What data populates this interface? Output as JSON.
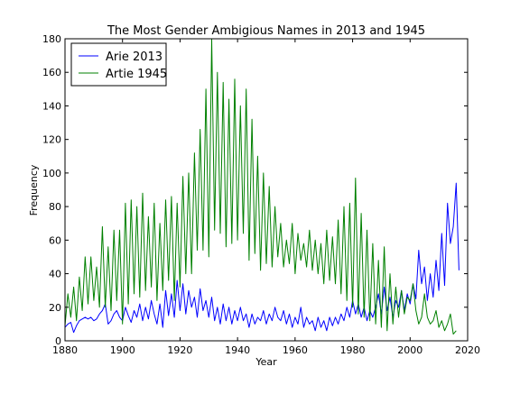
{
  "chart_data": {
    "type": "line",
    "title": "The Most Gender Ambigious Names in 2013 and 1945",
    "xlabel": "Year",
    "ylabel": "Frequency",
    "xlim": [
      1880,
      2020
    ],
    "ylim": [
      0,
      180
    ],
    "xticks": [
      1880,
      1900,
      1920,
      1940,
      1960,
      1980,
      2000,
      2020
    ],
    "yticks": [
      0,
      20,
      40,
      60,
      80,
      100,
      120,
      140,
      160,
      180
    ],
    "grid": false,
    "legend_position": "top-left",
    "series": [
      {
        "name": "Arie 2013",
        "color": "#0000ff",
        "points": [
          [
            1880,
            8
          ],
          [
            1881,
            10
          ],
          [
            1882,
            11
          ],
          [
            1883,
            5
          ],
          [
            1884,
            9
          ],
          [
            1885,
            12
          ],
          [
            1886,
            13
          ],
          [
            1887,
            14
          ],
          [
            1888,
            13
          ],
          [
            1889,
            14
          ],
          [
            1890,
            12
          ],
          [
            1891,
            13
          ],
          [
            1892,
            16
          ],
          [
            1893,
            18
          ],
          [
            1894,
            22
          ],
          [
            1895,
            10
          ],
          [
            1896,
            12
          ],
          [
            1897,
            16
          ],
          [
            1898,
            18
          ],
          [
            1899,
            14
          ],
          [
            1900,
            12
          ],
          [
            1901,
            20
          ],
          [
            1902,
            15
          ],
          [
            1903,
            11
          ],
          [
            1904,
            18
          ],
          [
            1905,
            14
          ],
          [
            1906,
            22
          ],
          [
            1907,
            12
          ],
          [
            1908,
            20
          ],
          [
            1909,
            13
          ],
          [
            1910,
            24
          ],
          [
            1911,
            16
          ],
          [
            1912,
            10
          ],
          [
            1913,
            22
          ],
          [
            1914,
            8
          ],
          [
            1915,
            30
          ],
          [
            1916,
            15
          ],
          [
            1917,
            28
          ],
          [
            1918,
            14
          ],
          [
            1919,
            36
          ],
          [
            1920,
            18
          ],
          [
            1921,
            34
          ],
          [
            1922,
            16
          ],
          [
            1923,
            30
          ],
          [
            1924,
            20
          ],
          [
            1925,
            26
          ],
          [
            1926,
            14
          ],
          [
            1927,
            31
          ],
          [
            1928,
            18
          ],
          [
            1929,
            24
          ],
          [
            1930,
            14
          ],
          [
            1931,
            26
          ],
          [
            1932,
            12
          ],
          [
            1933,
            20
          ],
          [
            1934,
            10
          ],
          [
            1935,
            22
          ],
          [
            1936,
            12
          ],
          [
            1937,
            20
          ],
          [
            1938,
            10
          ],
          [
            1939,
            18
          ],
          [
            1940,
            12
          ],
          [
            1941,
            20
          ],
          [
            1942,
            12
          ],
          [
            1943,
            16
          ],
          [
            1944,
            8
          ],
          [
            1945,
            16
          ],
          [
            1946,
            10
          ],
          [
            1947,
            14
          ],
          [
            1948,
            12
          ],
          [
            1949,
            18
          ],
          [
            1950,
            10
          ],
          [
            1951,
            16
          ],
          [
            1952,
            12
          ],
          [
            1953,
            20
          ],
          [
            1954,
            14
          ],
          [
            1955,
            12
          ],
          [
            1956,
            18
          ],
          [
            1957,
            10
          ],
          [
            1958,
            16
          ],
          [
            1959,
            8
          ],
          [
            1960,
            14
          ],
          [
            1961,
            10
          ],
          [
            1962,
            20
          ],
          [
            1963,
            8
          ],
          [
            1964,
            14
          ],
          [
            1965,
            10
          ],
          [
            1966,
            12
          ],
          [
            1967,
            6
          ],
          [
            1968,
            14
          ],
          [
            1969,
            8
          ],
          [
            1970,
            12
          ],
          [
            1971,
            6
          ],
          [
            1972,
            14
          ],
          [
            1973,
            9
          ],
          [
            1974,
            14
          ],
          [
            1975,
            10
          ],
          [
            1976,
            16
          ],
          [
            1977,
            12
          ],
          [
            1978,
            20
          ],
          [
            1979,
            14
          ],
          [
            1980,
            24
          ],
          [
            1981,
            16
          ],
          [
            1982,
            22
          ],
          [
            1983,
            14
          ],
          [
            1984,
            20
          ],
          [
            1985,
            12
          ],
          [
            1986,
            18
          ],
          [
            1987,
            14
          ],
          [
            1988,
            20
          ],
          [
            1989,
            28
          ],
          [
            1990,
            16
          ],
          [
            1991,
            32
          ],
          [
            1992,
            18
          ],
          [
            1993,
            26
          ],
          [
            1994,
            14
          ],
          [
            1995,
            24
          ],
          [
            1996,
            20
          ],
          [
            1997,
            30
          ],
          [
            1998,
            18
          ],
          [
            1999,
            28
          ],
          [
            2000,
            22
          ],
          [
            2001,
            34
          ],
          [
            2002,
            25
          ],
          [
            2003,
            54
          ],
          [
            2004,
            34
          ],
          [
            2005,
            44
          ],
          [
            2006,
            24
          ],
          [
            2007,
            40
          ],
          [
            2008,
            26
          ],
          [
            2009,
            48
          ],
          [
            2010,
            30
          ],
          [
            2011,
            64
          ],
          [
            2012,
            33
          ],
          [
            2013,
            82
          ],
          [
            2014,
            58
          ],
          [
            2015,
            68
          ],
          [
            2016,
            94
          ],
          [
            2017,
            42
          ]
        ]
      },
      {
        "name": "Artie 1945",
        "color": "#008000",
        "points": [
          [
            1880,
            9
          ],
          [
            1881,
            28
          ],
          [
            1882,
            14
          ],
          [
            1883,
            32
          ],
          [
            1884,
            12
          ],
          [
            1885,
            38
          ],
          [
            1886,
            18
          ],
          [
            1887,
            50
          ],
          [
            1888,
            22
          ],
          [
            1889,
            50
          ],
          [
            1890,
            24
          ],
          [
            1891,
            44
          ],
          [
            1892,
            20
          ],
          [
            1893,
            68
          ],
          [
            1894,
            20
          ],
          [
            1895,
            56
          ],
          [
            1896,
            18
          ],
          [
            1897,
            66
          ],
          [
            1898,
            24
          ],
          [
            1899,
            66
          ],
          [
            1900,
            10
          ],
          [
            1901,
            82
          ],
          [
            1902,
            22
          ],
          [
            1903,
            84
          ],
          [
            1904,
            28
          ],
          [
            1905,
            80
          ],
          [
            1906,
            26
          ],
          [
            1907,
            88
          ],
          [
            1908,
            30
          ],
          [
            1909,
            74
          ],
          [
            1910,
            32
          ],
          [
            1911,
            82
          ],
          [
            1912,
            24
          ],
          [
            1913,
            70
          ],
          [
            1914,
            30
          ],
          [
            1915,
            84
          ],
          [
            1916,
            36
          ],
          [
            1917,
            86
          ],
          [
            1918,
            24
          ],
          [
            1919,
            82
          ],
          [
            1920,
            32
          ],
          [
            1921,
            98
          ],
          [
            1922,
            40
          ],
          [
            1923,
            100
          ],
          [
            1924,
            40
          ],
          [
            1925,
            112
          ],
          [
            1926,
            54
          ],
          [
            1927,
            126
          ],
          [
            1928,
            54
          ],
          [
            1929,
            150
          ],
          [
            1930,
            50
          ],
          [
            1931,
            180
          ],
          [
            1932,
            66
          ],
          [
            1933,
            160
          ],
          [
            1934,
            64
          ],
          [
            1935,
            154
          ],
          [
            1936,
            56
          ],
          [
            1937,
            144
          ],
          [
            1938,
            58
          ],
          [
            1939,
            156
          ],
          [
            1940,
            60
          ],
          [
            1941,
            140
          ],
          [
            1942,
            64
          ],
          [
            1943,
            150
          ],
          [
            1944,
            48
          ],
          [
            1945,
            132
          ],
          [
            1946,
            52
          ],
          [
            1947,
            110
          ],
          [
            1948,
            42
          ],
          [
            1949,
            100
          ],
          [
            1950,
            46
          ],
          [
            1951,
            92
          ],
          [
            1952,
            44
          ],
          [
            1953,
            80
          ],
          [
            1954,
            50
          ],
          [
            1955,
            70
          ],
          [
            1956,
            44
          ],
          [
            1957,
            60
          ],
          [
            1958,
            46
          ],
          [
            1959,
            70
          ],
          [
            1960,
            40
          ],
          [
            1961,
            64
          ],
          [
            1962,
            48
          ],
          [
            1963,
            58
          ],
          [
            1964,
            44
          ],
          [
            1965,
            66
          ],
          [
            1966,
            42
          ],
          [
            1967,
            60
          ],
          [
            1968,
            40
          ],
          [
            1969,
            58
          ],
          [
            1970,
            34
          ],
          [
            1971,
            66
          ],
          [
            1972,
            36
          ],
          [
            1973,
            62
          ],
          [
            1974,
            34
          ],
          [
            1975,
            72
          ],
          [
            1976,
            28
          ],
          [
            1977,
            80
          ],
          [
            1978,
            24
          ],
          [
            1979,
            82
          ],
          [
            1980,
            20
          ],
          [
            1981,
            97
          ],
          [
            1982,
            16
          ],
          [
            1983,
            76
          ],
          [
            1984,
            14
          ],
          [
            1985,
            66
          ],
          [
            1986,
            12
          ],
          [
            1987,
            58
          ],
          [
            1988,
            10
          ],
          [
            1989,
            48
          ],
          [
            1990,
            8
          ],
          [
            1991,
            56
          ],
          [
            1992,
            6
          ],
          [
            1993,
            40
          ],
          [
            1994,
            10
          ],
          [
            1995,
            32
          ],
          [
            1996,
            14
          ],
          [
            1997,
            30
          ],
          [
            1998,
            16
          ],
          [
            1999,
            26
          ],
          [
            2000,
            24
          ],
          [
            2001,
            34
          ],
          [
            2002,
            18
          ],
          [
            2003,
            10
          ],
          [
            2004,
            14
          ],
          [
            2005,
            28
          ],
          [
            2006,
            14
          ],
          [
            2007,
            10
          ],
          [
            2008,
            12
          ],
          [
            2009,
            18
          ],
          [
            2010,
            8
          ],
          [
            2011,
            12
          ],
          [
            2012,
            6
          ],
          [
            2013,
            10
          ],
          [
            2014,
            16
          ],
          [
            2015,
            4
          ],
          [
            2016,
            6
          ]
        ]
      }
    ]
  }
}
